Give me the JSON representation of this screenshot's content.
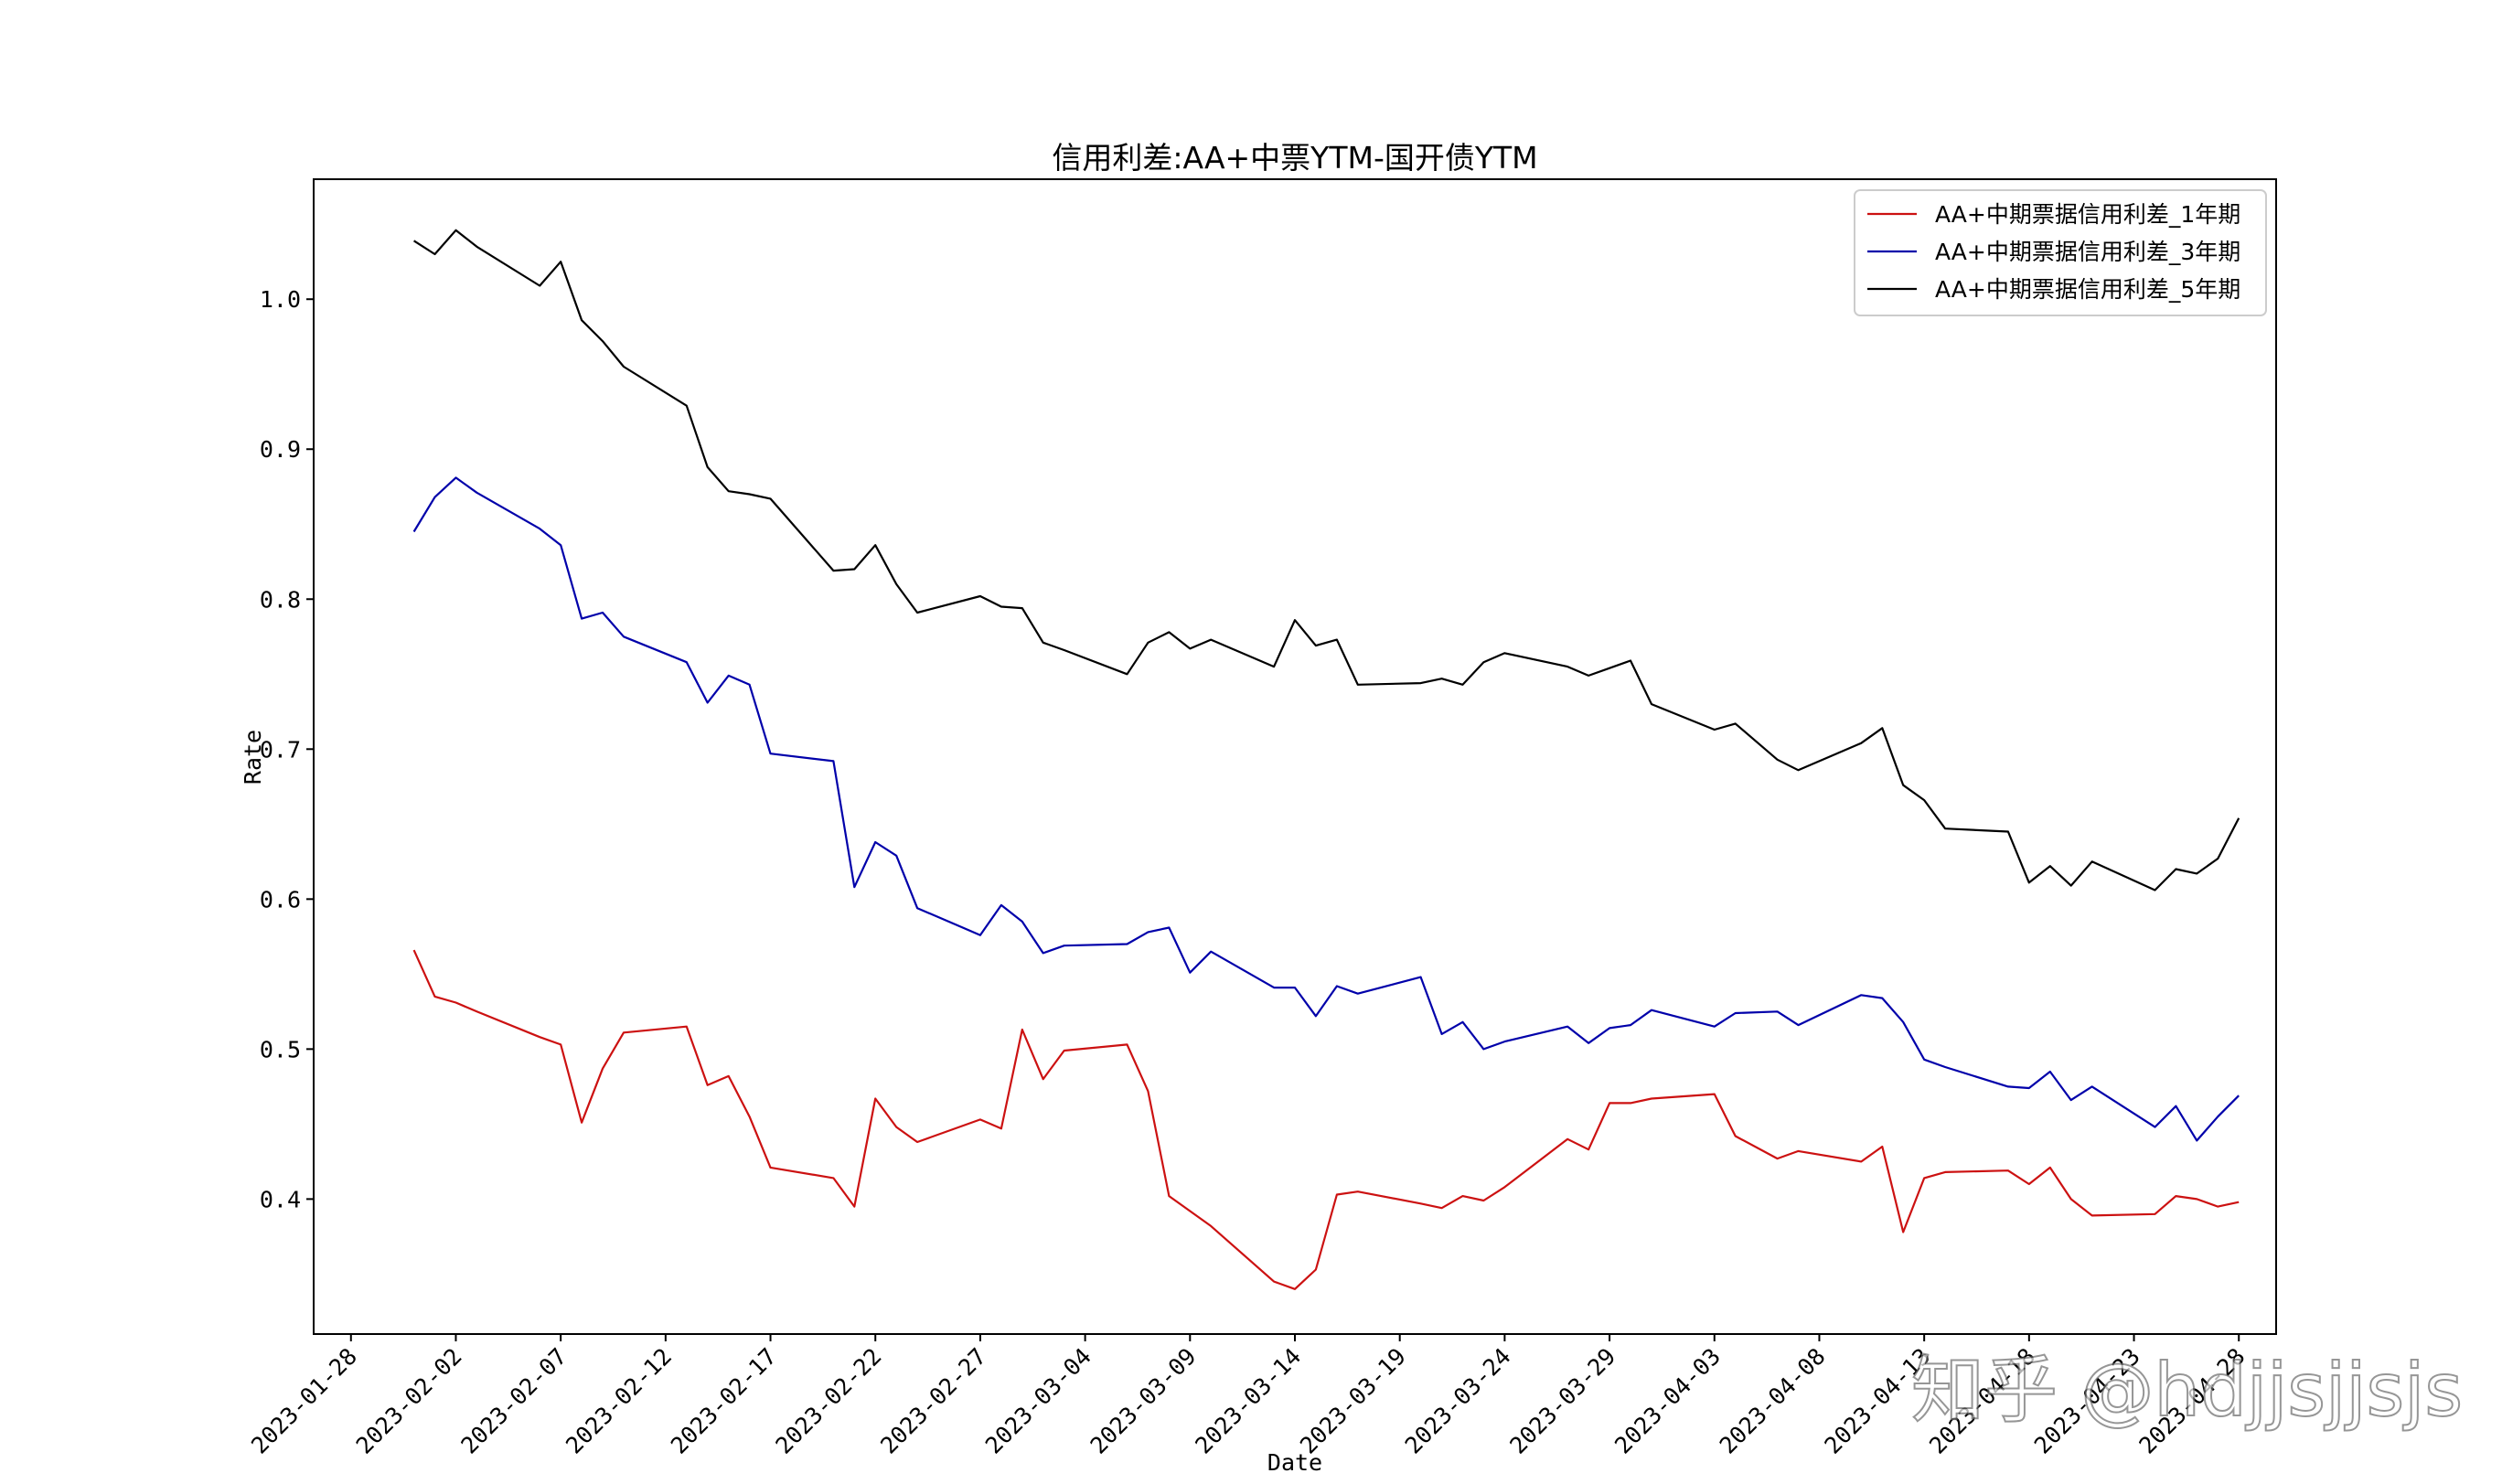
{
  "watermark": "知乎 @hdjjsjjsjs",
  "chart_data": {
    "type": "line",
    "title": "信用利差:AA+中票YTM-国开债YTM",
    "xlabel": "Date",
    "ylabel": "Rate",
    "grid": false,
    "legend_position": "top-right",
    "x_tick_labels": [
      "2023-01-28",
      "2023-02-02",
      "2023-02-07",
      "2023-02-12",
      "2023-02-17",
      "2023-02-22",
      "2023-02-27",
      "2023-03-04",
      "2023-03-09",
      "2023-03-14",
      "2023-03-19",
      "2023-03-24",
      "2023-03-29",
      "2023-04-03",
      "2023-04-08",
      "2023-04-13",
      "2023-04-18",
      "2023-04-23",
      "2023-04-28"
    ],
    "y_tick_labels": [
      "0.4",
      "0.5",
      "0.6",
      "0.7",
      "0.8",
      "0.9",
      "1.0"
    ],
    "xlim": [
      "2023-01-28",
      "2023-04-28"
    ],
    "ylim": [
      0.31,
      1.08
    ],
    "x": [
      "2023-01-31",
      "2023-02-01",
      "2023-02-02",
      "2023-02-03",
      "2023-02-06",
      "2023-02-07",
      "2023-02-08",
      "2023-02-09",
      "2023-02-10",
      "2023-02-13",
      "2023-02-14",
      "2023-02-15",
      "2023-02-16",
      "2023-02-17",
      "2023-02-20",
      "2023-02-21",
      "2023-02-22",
      "2023-02-23",
      "2023-02-24",
      "2023-02-27",
      "2023-02-28",
      "2023-03-01",
      "2023-03-02",
      "2023-03-03",
      "2023-03-06",
      "2023-03-07",
      "2023-03-08",
      "2023-03-09",
      "2023-03-10",
      "2023-03-13",
      "2023-03-14",
      "2023-03-15",
      "2023-03-16",
      "2023-03-17",
      "2023-03-20",
      "2023-03-21",
      "2023-03-22",
      "2023-03-23",
      "2023-03-24",
      "2023-03-27",
      "2023-03-28",
      "2023-03-29",
      "2023-03-30",
      "2023-03-31",
      "2023-04-03",
      "2023-04-04",
      "2023-04-06",
      "2023-04-07",
      "2023-04-10",
      "2023-04-11",
      "2023-04-12",
      "2023-04-13",
      "2023-04-14",
      "2023-04-17",
      "2023-04-18",
      "2023-04-19",
      "2023-04-20",
      "2023-04-21",
      "2023-04-24",
      "2023-04-25",
      "2023-04-26",
      "2023-04-27",
      "2023-04-28"
    ],
    "series": [
      {
        "name": "AA+中期票据信用利差_1年期",
        "color": "#cc1111",
        "values": [
          0.566,
          0.535,
          0.531,
          0.525,
          0.508,
          0.503,
          0.451,
          0.487,
          0.511,
          0.515,
          0.476,
          0.482,
          0.455,
          0.421,
          0.414,
          0.395,
          0.467,
          0.448,
          0.438,
          0.453,
          0.447,
          0.513,
          0.48,
          0.499,
          0.503,
          0.472,
          0.402,
          0.392,
          0.382,
          0.345,
          0.34,
          0.353,
          0.403,
          0.405,
          0.397,
          0.394,
          0.402,
          0.399,
          0.408,
          0.44,
          0.433,
          0.464,
          0.464,
          0.467,
          0.47,
          0.442,
          0.427,
          0.432,
          0.425,
          0.435,
          0.378,
          0.414,
          0.418,
          0.419,
          0.41,
          0.421,
          0.4,
          0.389,
          0.39,
          0.402,
          0.4,
          0.395,
          0.398
        ]
      },
      {
        "name": "AA+中期票据信用利差_3年期",
        "color": "#0000aa",
        "values": [
          0.845,
          0.868,
          0.881,
          0.871,
          0.847,
          0.836,
          0.787,
          0.791,
          0.775,
          0.758,
          0.731,
          0.749,
          0.743,
          0.697,
          0.692,
          0.608,
          0.638,
          0.629,
          0.594,
          0.576,
          0.596,
          0.585,
          0.564,
          0.569,
          0.57,
          0.578,
          0.581,
          0.551,
          0.565,
          0.541,
          0.541,
          0.522,
          0.542,
          0.537,
          0.548,
          0.51,
          0.518,
          0.5,
          0.505,
          0.515,
          0.504,
          0.514,
          0.516,
          0.526,
          0.515,
          0.524,
          0.525,
          0.516,
          0.536,
          0.534,
          0.518,
          0.493,
          0.488,
          0.475,
          0.474,
          0.485,
          0.466,
          0.475,
          0.448,
          0.462,
          0.439,
          0.455,
          0.469
        ]
      },
      {
        "name": "AA+中期票据信用利差_5年期",
        "color": "#000000",
        "values": [
          1.039,
          1.03,
          1.046,
          1.035,
          1.009,
          1.025,
          0.986,
          0.972,
          0.955,
          0.929,
          0.888,
          0.872,
          0.87,
          0.867,
          0.819,
          0.82,
          0.836,
          0.81,
          0.791,
          0.802,
          0.795,
          0.794,
          0.771,
          0.766,
          0.75,
          0.771,
          0.778,
          0.767,
          0.773,
          0.755,
          0.786,
          0.769,
          0.773,
          0.743,
          0.744,
          0.747,
          0.743,
          0.758,
          0.764,
          0.755,
          0.749,
          0.754,
          0.759,
          0.73,
          0.713,
          0.717,
          0.693,
          0.686,
          0.704,
          0.714,
          0.676,
          0.666,
          0.647,
          0.645,
          0.611,
          0.622,
          0.609,
          0.625,
          0.606,
          0.62,
          0.617,
          0.627,
          0.654
        ]
      }
    ]
  }
}
